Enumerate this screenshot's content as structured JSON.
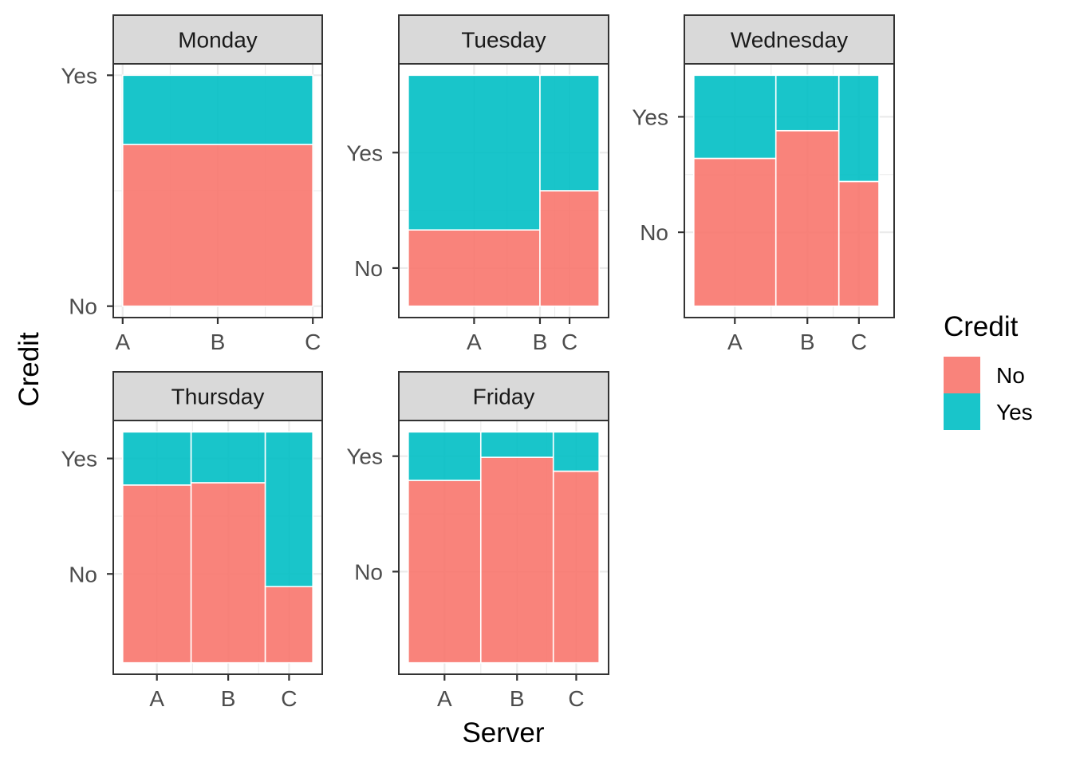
{
  "chart_data": {
    "type": "mosaic",
    "xlabel": "Server",
    "ylabel": "Credit",
    "legend": {
      "title": "Credit",
      "position": "right",
      "entries": [
        {
          "label": "No",
          "color": "#F8766D"
        },
        {
          "label": "Yes",
          "color": "#00BFC4"
        }
      ]
    },
    "levels": [
      "No",
      "Yes"
    ],
    "grid": true,
    "panels": [
      {
        "title": "Monday",
        "servers": [
          {
            "name": "A",
            "width": 0.0
          },
          {
            "name": "B",
            "width": 1.0,
            "no": 0.7
          },
          {
            "name": "C",
            "width": 0.0
          }
        ],
        "x_ticks": [
          "A",
          "B",
          "C"
        ],
        "y_ticks": [
          "No",
          "Yes"
        ]
      },
      {
        "title": "Tuesday",
        "servers": [
          {
            "name": "A",
            "width": 0.69,
            "no": 0.33
          },
          {
            "name": "B",
            "width": 0.0
          },
          {
            "name": "C",
            "width": 0.31,
            "no": 0.5
          }
        ],
        "x_ticks": [
          "A",
          "B",
          "C"
        ],
        "y_ticks": [
          "No",
          "Yes"
        ]
      },
      {
        "title": "Wednesday",
        "servers": [
          {
            "name": "A",
            "width": 0.43,
            "no": 0.64
          },
          {
            "name": "B",
            "width": 0.33,
            "no": 0.76
          },
          {
            "name": "C",
            "width": 0.21,
            "no": 0.54
          }
        ],
        "x_ticks": [
          "A",
          "B",
          "C"
        ],
        "y_ticks": [
          "No",
          "Yes"
        ]
      },
      {
        "title": "Thursday",
        "servers": [
          {
            "name": "A",
            "width": 0.36,
            "no": 0.77
          },
          {
            "name": "B",
            "width": 0.39,
            "no": 0.78
          },
          {
            "name": "C",
            "width": 0.25,
            "no": 0.33
          }
        ],
        "x_ticks": [
          "A",
          "B",
          "C"
        ],
        "y_ticks": [
          "No",
          "Yes"
        ]
      },
      {
        "title": "Friday",
        "servers": [
          {
            "name": "A",
            "width": 0.38,
            "no": 0.79
          },
          {
            "name": "B",
            "width": 0.38,
            "no": 0.89
          },
          {
            "name": "C",
            "width": 0.24,
            "no": 0.83
          }
        ],
        "x_ticks": [
          "A",
          "B",
          "C"
        ],
        "y_ticks": [
          "No",
          "Yes"
        ]
      }
    ]
  }
}
